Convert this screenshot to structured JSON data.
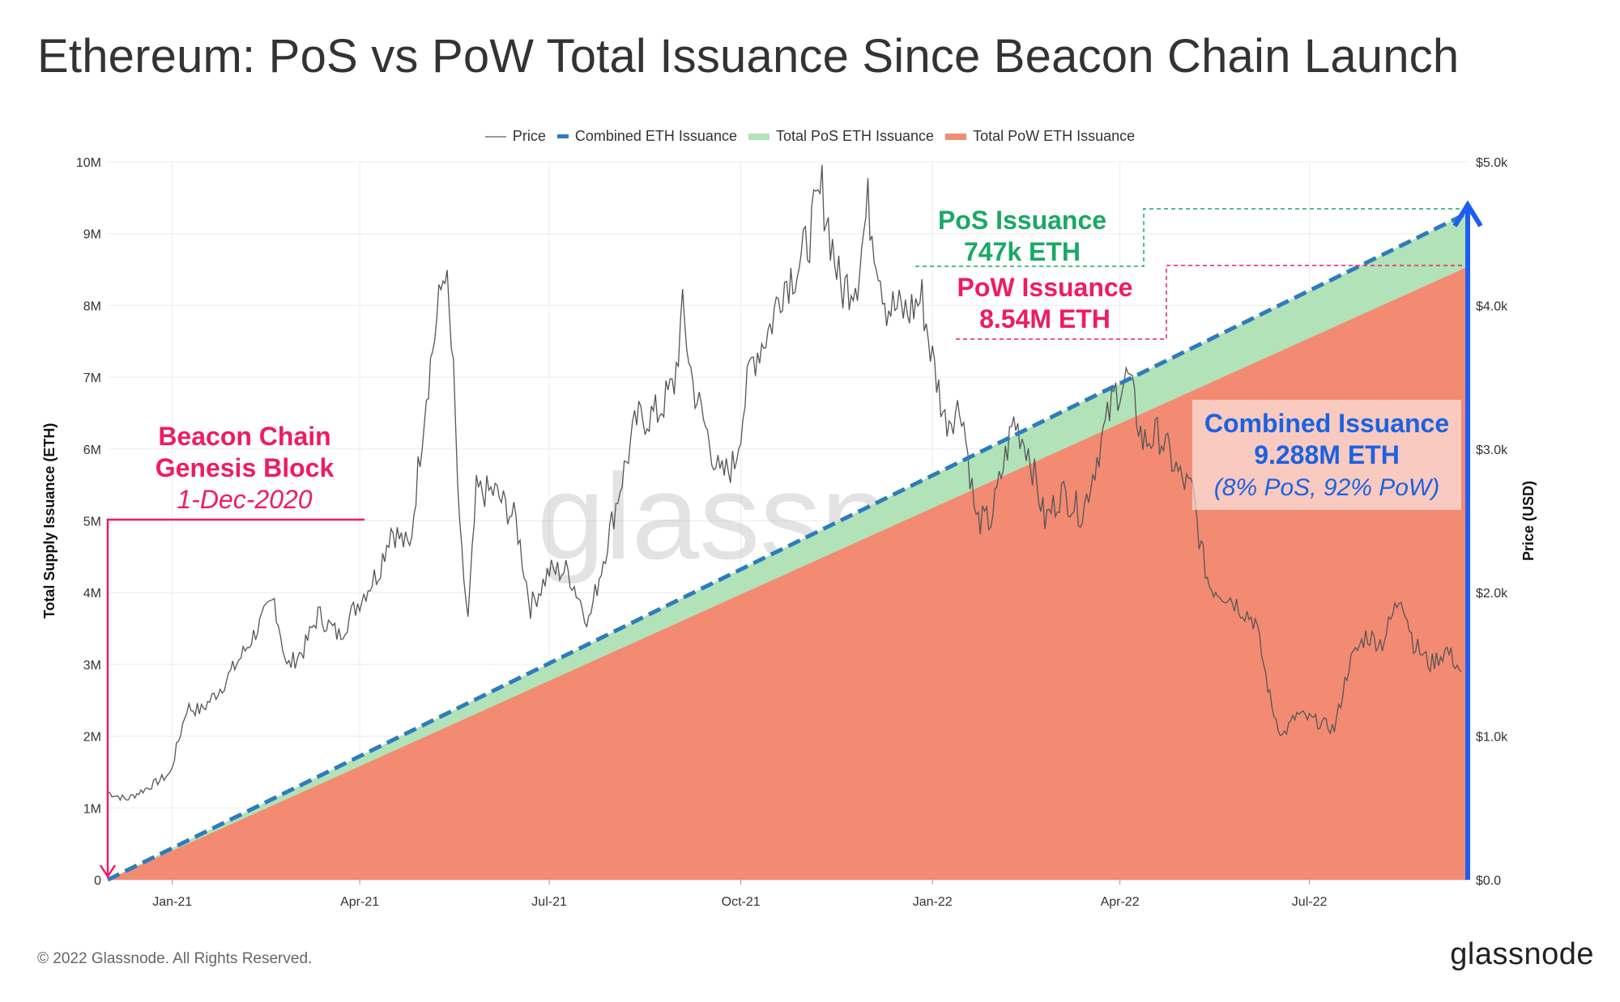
{
  "title": "Ethereum: PoS vs PoW Total Issuance Since Beacon Chain Launch",
  "footer": "© 2022 Glassnode. All Rights Reserved.",
  "logo": "glassnode",
  "watermark": "glassnode",
  "colors": {
    "price": "#555555",
    "combined": "#2e7bbd",
    "pos": "#b2e2b8",
    "pow": "#f28b72",
    "genesis": "#ee1c62",
    "pos_text": "#1aa866",
    "combined_text": "#1b62e0",
    "combined_arrow": "#1f5cf0"
  },
  "chart_data": {
    "type": "area",
    "legend_placement": "top-center",
    "grid": true,
    "xlabel": "",
    "ylabel_left": "Total Supply Issuance (ETH)",
    "ylabel_right": "Price (USD)",
    "x_ticks": [
      "Jan-21",
      "Apr-21",
      "Jul-21",
      "Oct-21",
      "Jan-22",
      "Apr-22",
      "Jul-22"
    ],
    "y_left_ticks": [
      "0",
      "1M",
      "2M",
      "3M",
      "4M",
      "5M",
      "6M",
      "7M",
      "8M",
      "9M",
      "10M"
    ],
    "y_right_ticks": [
      "$0.0",
      "$1.0k",
      "$2.0k",
      "$3.0k",
      "$4.0k",
      "$5.0k"
    ],
    "ylim_left": [
      0,
      10000000
    ],
    "ylim_right": [
      0,
      5000
    ],
    "xlim": [
      "2020-12-01",
      "2022-09-15"
    ],
    "series": [
      {
        "name": "Price",
        "axis": "right",
        "style": "line",
        "points": [
          [
            "2020-12-01",
            610
          ],
          [
            "2020-12-10",
            560
          ],
          [
            "2020-12-20",
            640
          ],
          [
            "2020-12-31",
            740
          ],
          [
            "2021-01-08",
            1200
          ],
          [
            "2021-01-15",
            1180
          ],
          [
            "2021-01-25",
            1350
          ],
          [
            "2021-02-05",
            1600
          ],
          [
            "2021-02-12",
            1780
          ],
          [
            "2021-02-19",
            1950
          ],
          [
            "2021-02-25",
            1480
          ],
          [
            "2021-03-05",
            1600
          ],
          [
            "2021-03-12",
            1850
          ],
          [
            "2021-03-22",
            1700
          ],
          [
            "2021-04-01",
            1950
          ],
          [
            "2021-04-10",
            2150
          ],
          [
            "2021-04-16",
            2450
          ],
          [
            "2021-04-25",
            2300
          ],
          [
            "2021-05-03",
            3400
          ],
          [
            "2021-05-08",
            3900
          ],
          [
            "2021-05-12",
            4300
          ],
          [
            "2021-05-16",
            3500
          ],
          [
            "2021-05-19",
            2400
          ],
          [
            "2021-05-23",
            1800
          ],
          [
            "2021-05-27",
            2700
          ],
          [
            "2021-06-05",
            2700
          ],
          [
            "2021-06-15",
            2500
          ],
          [
            "2021-06-22",
            1900
          ],
          [
            "2021-07-01",
            2150
          ],
          [
            "2021-07-10",
            2150
          ],
          [
            "2021-07-20",
            1800
          ],
          [
            "2021-07-28",
            2300
          ],
          [
            "2021-08-05",
            2800
          ],
          [
            "2021-08-12",
            3200
          ],
          [
            "2021-08-22",
            3250
          ],
          [
            "2021-08-30",
            3450
          ],
          [
            "2021-09-03",
            3950
          ],
          [
            "2021-09-08",
            3450
          ],
          [
            "2021-09-21",
            2800
          ],
          [
            "2021-09-28",
            2900
          ],
          [
            "2021-10-06",
            3600
          ],
          [
            "2021-10-15",
            3850
          ],
          [
            "2021-10-21",
            4150
          ],
          [
            "2021-10-30",
            4300
          ],
          [
            "2021-11-09",
            4800
          ],
          [
            "2021-11-18",
            4100
          ],
          [
            "2021-11-26",
            4200
          ],
          [
            "2021-12-01",
            4700
          ],
          [
            "2021-12-10",
            4000
          ],
          [
            "2021-12-20",
            3950
          ],
          [
            "2021-12-27",
            4050
          ],
          [
            "2021-12-31",
            3700
          ],
          [
            "2022-01-07",
            3200
          ],
          [
            "2022-01-15",
            3300
          ],
          [
            "2022-01-22",
            2500
          ],
          [
            "2022-01-29",
            2500
          ],
          [
            "2022-02-09",
            3200
          ],
          [
            "2022-02-16",
            3000
          ],
          [
            "2022-02-24",
            2500
          ],
          [
            "2022-03-04",
            2700
          ],
          [
            "2022-03-14",
            2550
          ],
          [
            "2022-03-22",
            3000
          ],
          [
            "2022-03-30",
            3400
          ],
          [
            "2022-04-05",
            3500
          ],
          [
            "2022-04-12",
            3050
          ],
          [
            "2022-04-20",
            3100
          ],
          [
            "2022-04-30",
            2800
          ],
          [
            "2022-05-06",
            2700
          ],
          [
            "2022-05-10",
            2300
          ],
          [
            "2022-05-14",
            2050
          ],
          [
            "2022-05-23",
            1980
          ],
          [
            "2022-06-05",
            1800
          ],
          [
            "2022-06-13",
            1200
          ],
          [
            "2022-06-18",
            1000
          ],
          [
            "2022-06-25",
            1150
          ],
          [
            "2022-07-05",
            1100
          ],
          [
            "2022-07-13",
            1050
          ],
          [
            "2022-07-20",
            1500
          ],
          [
            "2022-07-28",
            1700
          ],
          [
            "2022-08-05",
            1650
          ],
          [
            "2022-08-14",
            2000
          ],
          [
            "2022-08-20",
            1650
          ],
          [
            "2022-08-28",
            1500
          ],
          [
            "2022-09-05",
            1600
          ],
          [
            "2022-09-12",
            1450
          ]
        ]
      },
      {
        "name": "Combined ETH Issuance",
        "axis": "left",
        "style": "dashed",
        "points": [
          [
            "2020-12-01",
            0
          ],
          [
            "2022-09-15",
            9288000
          ]
        ]
      },
      {
        "name": "Total PoS ETH Issuance",
        "axis": "left",
        "style": "area",
        "points": [
          [
            "2020-12-01",
            0
          ],
          [
            "2022-09-15",
            747000
          ]
        ]
      },
      {
        "name": "Total PoW ETH Issuance",
        "axis": "left",
        "style": "area",
        "points": [
          [
            "2020-12-01",
            0
          ],
          [
            "2022-09-15",
            8540000
          ]
        ]
      }
    ],
    "annotations": {
      "genesis": {
        "line1": "Beacon Chain",
        "line2": "Genesis Block",
        "date": "1-Dec-2020"
      },
      "pos": {
        "line1": "PoS Issuance",
        "line2": "747k ETH"
      },
      "pow": {
        "line1": "PoW Issuance",
        "line2": "8.54M ETH"
      },
      "combined": {
        "line1": "Combined Issuance",
        "line2": "9.288M ETH",
        "line3": "(8% PoS, 92% PoW)"
      }
    }
  }
}
